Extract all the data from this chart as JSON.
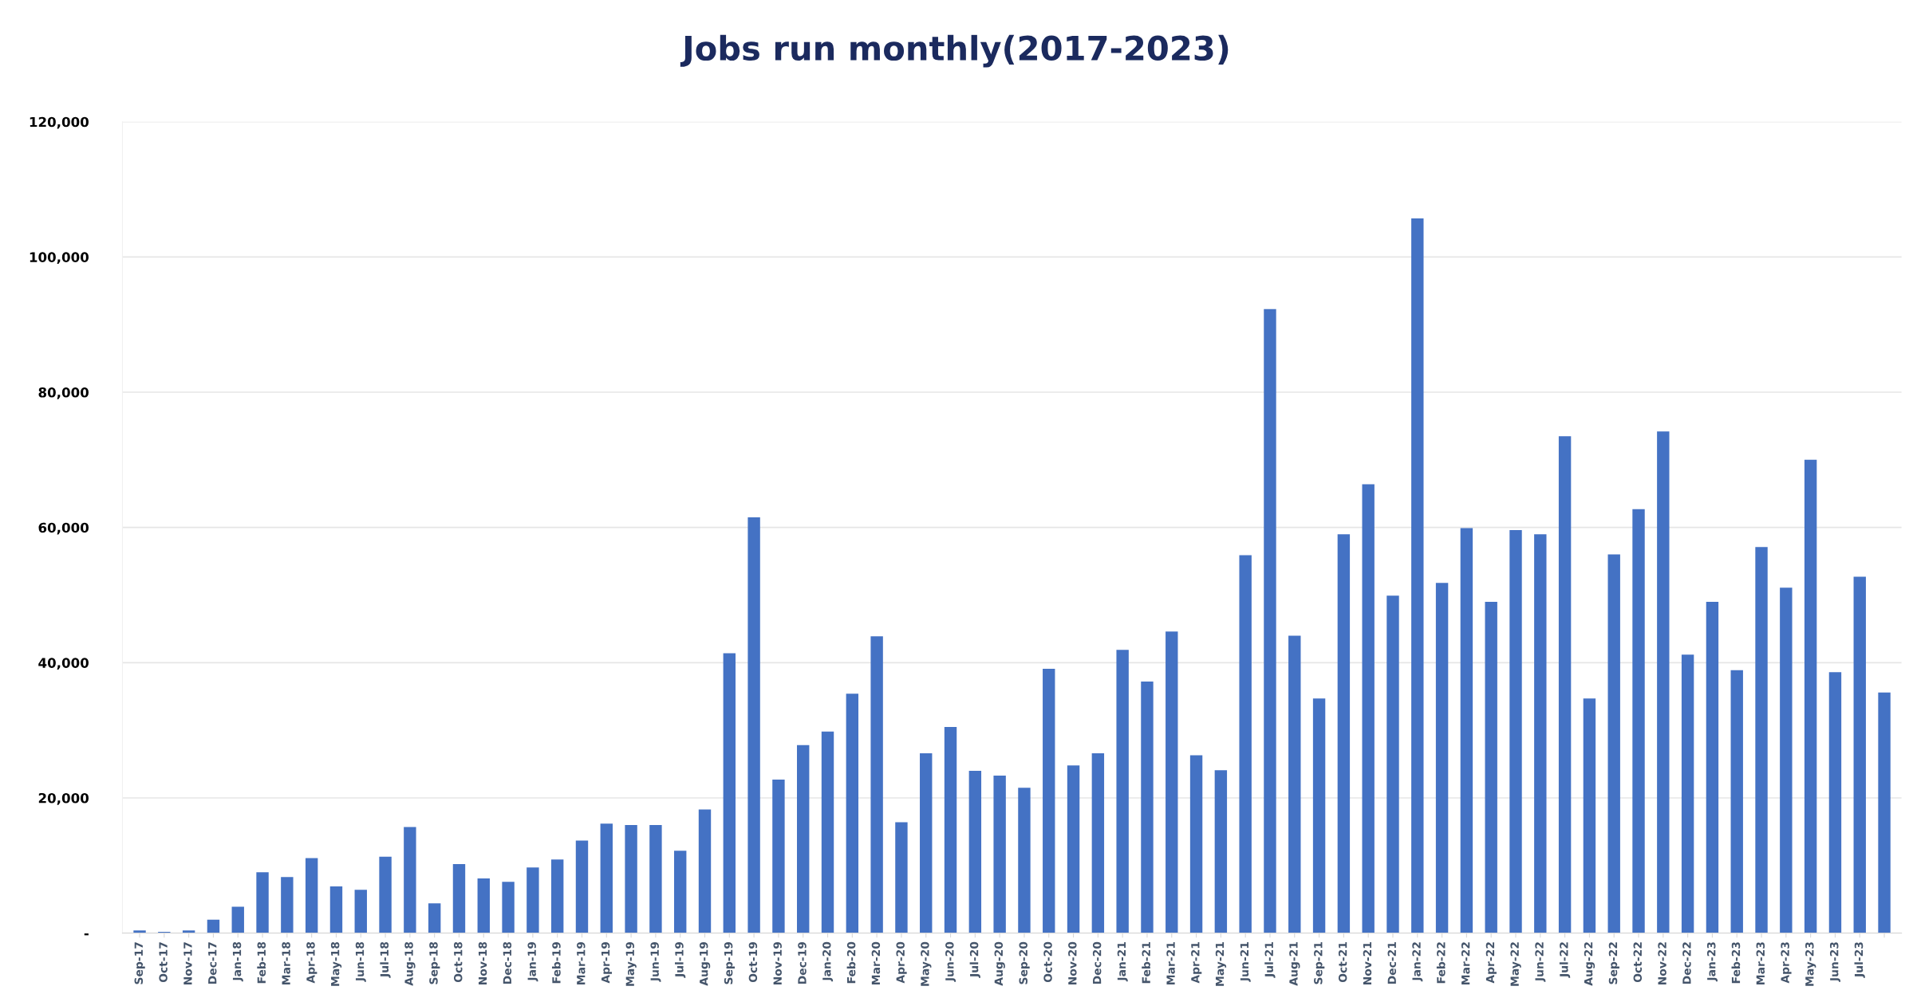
{
  "chart_data": {
    "type": "bar",
    "title": "Jobs run monthly(2017-2023)",
    "categories": [
      "Sep-17",
      "Oct-17",
      "Nov-17",
      "Dec-17",
      "Jan-18",
      "Feb-18",
      "Mar-18",
      "Apr-18",
      "May-18",
      "Jun-18",
      "Jul-18",
      "Aug-18",
      "Sep-18",
      "Oct-18",
      "Nov-18",
      "Dec-18",
      "Jan-19",
      "Feb-19",
      "Mar-19",
      "Apr-19",
      "May-19",
      "Jun-19",
      "Jul-19",
      "Aug-19",
      "Sep-19",
      "Oct-19",
      "Nov-19",
      "Dec-19",
      "Jan-20",
      "Feb-20",
      "Mar-20",
      "Apr-20",
      "May-20",
      "Jun-20",
      "Jul-20",
      "Aug-20",
      "Sep-20",
      "Oct-20",
      "Nov-20",
      "Dec-20",
      "Jan-21",
      "Feb-21",
      "Mar-21",
      "Apr-21",
      "May-21",
      "Jun-21",
      "Jul-21",
      "Aug-21",
      "Sep-21",
      "Oct-21",
      "Nov-21",
      "Dec-21",
      "Jan-22",
      "Feb-22",
      "Mar-22",
      "Apr-22",
      "May-22",
      "Jun-22",
      "Jul-22",
      "Aug-22",
      "Sep-22",
      "Oct-22",
      "Nov-22",
      "Dec-22",
      "Jan-23",
      "Feb-23",
      "Mar-23",
      "Apr-23",
      "May-23",
      "Jun-23",
      "Jul-23",
      null
    ],
    "values": [
      400,
      200,
      400,
      2000,
      3900,
      9000,
      8300,
      11100,
      6900,
      6400,
      11300,
      15700,
      4400,
      10200,
      8100,
      7600,
      9700,
      10900,
      13700,
      16200,
      16000,
      16000,
      12200,
      18300,
      41400,
      61500,
      22700,
      27800,
      29800,
      35400,
      43900,
      16400,
      26600,
      30500,
      24000,
      23300,
      21500,
      39100,
      24800,
      26600,
      41900,
      37200,
      44600,
      26300,
      24100,
      55900,
      92300,
      44000,
      34700,
      59000,
      66400,
      49900,
      105700,
      51800,
      59900,
      49000,
      59600,
      59000,
      73500,
      34700,
      56000,
      62700,
      74200,
      41200,
      49000,
      38900,
      57100,
      51100,
      70000,
      38600,
      52700,
      35600
    ],
    "color": "#4472c4",
    "ylim": [
      0,
      120000
    ],
    "yticks": [
      {
        "value": 0,
        "label": "-"
      },
      {
        "value": 20000,
        "label": "20,000"
      },
      {
        "value": 40000,
        "label": "40,000"
      },
      {
        "value": 60000,
        "label": "60,000"
      },
      {
        "value": 80000,
        "label": "80,000"
      },
      {
        "value": 100000,
        "label": "100,000"
      },
      {
        "value": 120000,
        "label": "120,000"
      }
    ],
    "grid": "y",
    "legend": false
  }
}
